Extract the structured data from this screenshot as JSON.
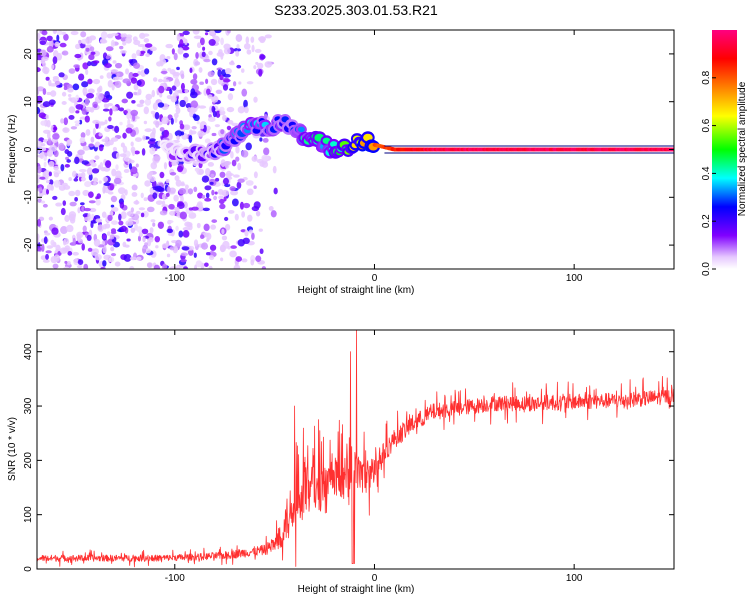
{
  "figure_title": "S233.2025.303.01.53.R21",
  "chart_data": [
    {
      "type": "heatmap",
      "title": "S233.2025.303.01.53.R21",
      "xlabel": "Height of straight line (km)",
      "ylabel": "Frequency (Hz)",
      "xlim": [
        -169,
        150
      ],
      "ylim": [
        -25,
        25
      ],
      "x_ticks": [
        -100,
        0,
        100
      ],
      "y_ticks": [
        -20,
        -10,
        0,
        10,
        20
      ],
      "x_tick_labels": [
        "-100",
        "0",
        "100"
      ],
      "y_tick_labels": [
        "-20",
        "-10",
        "0",
        "10",
        "20"
      ],
      "colorbar": {
        "label": "Normalized spectral amplitude",
        "range": [
          0,
          1
        ],
        "ticks": [
          0.0,
          0.2,
          0.4,
          0.6,
          0.8
        ],
        "tick_labels": [
          "0.0",
          "0.2",
          "0.4",
          "0.6",
          "0.8"
        ],
        "colormap": [
          "#ffffff",
          "#8000ff",
          "#0000ff",
          "#00ffff",
          "#00ff00",
          "#ffff00",
          "#ff8000",
          "#ff0000",
          "#ff0080"
        ]
      },
      "noise_region_x": [
        -169,
        -55
      ],
      "noise_region_ylim": [
        -25,
        25
      ],
      "carrier_trace": {
        "x": [
          -105,
          -95,
          -85,
          -80,
          -75,
          -70,
          -65,
          -60,
          -55,
          -50,
          -45,
          -40,
          -35,
          -30,
          -25,
          -20,
          -15,
          -10,
          -5,
          0,
          10,
          20,
          30,
          50,
          80,
          100,
          120,
          150
        ],
        "freq": [
          0,
          -1,
          -1,
          0,
          1,
          2,
          4,
          5,
          5,
          5,
          6,
          4,
          3,
          2,
          1,
          0,
          0,
          1,
          2,
          1,
          0,
          0,
          0,
          0,
          0,
          0,
          0,
          0
        ],
        "amplitude": [
          0.1,
          0.1,
          0.15,
          0.2,
          0.25,
          0.3,
          0.3,
          0.3,
          0.3,
          0.3,
          0.3,
          0.3,
          0.35,
          0.4,
          0.4,
          0.45,
          0.5,
          0.6,
          0.7,
          0.8,
          0.85,
          0.9,
          0.95,
          0.95,
          0.95,
          0.95,
          0.95,
          0.95
        ]
      }
    },
    {
      "type": "line",
      "xlabel": "Height of straight line (km)",
      "ylabel": "SNR (10 * v/v)",
      "xlim": [
        -169,
        150
      ],
      "ylim": [
        0,
        440
      ],
      "x_ticks": [
        -100,
        0,
        100
      ],
      "y_ticks": [
        0,
        100,
        200,
        300,
        400
      ],
      "x_tick_labels": [
        "-100",
        "0",
        "100"
      ],
      "y_tick_labels": [
        "0",
        "100",
        "200",
        "300",
        "400"
      ],
      "series": [
        {
          "name": "SNR",
          "color": "#ff3030",
          "x": [
            -169,
            -150,
            -130,
            -110,
            -90,
            -75,
            -65,
            -55,
            -50,
            -45,
            -40,
            -35,
            -30,
            -25,
            -20,
            -15,
            -10,
            -5,
            0,
            5,
            10,
            15,
            20,
            25,
            30,
            40,
            50,
            60,
            80,
            100,
            120,
            140,
            150
          ],
          "y": [
            20,
            20,
            20,
            20,
            22,
            25,
            30,
            35,
            45,
            80,
            130,
            150,
            145,
            150,
            160,
            165,
            180,
            170,
            180,
            215,
            240,
            255,
            270,
            280,
            290,
            295,
            300,
            305,
            305,
            308,
            310,
            315,
            320
          ],
          "noise_amplitude": [
            10,
            10,
            10,
            10,
            10,
            12,
            14,
            16,
            25,
            60,
            80,
            80,
            70,
            70,
            70,
            65,
            60,
            55,
            45,
            35,
            30,
            30,
            28,
            26,
            26,
            24,
            24,
            24,
            24,
            24,
            24,
            24,
            24
          ],
          "spikes": [
            {
              "x": -9,
              "y": 440
            },
            {
              "x": -12,
              "y": 400
            },
            {
              "x": -40,
              "y": 300
            },
            {
              "x": -28,
              "y": 275
            }
          ]
        }
      ]
    }
  ]
}
